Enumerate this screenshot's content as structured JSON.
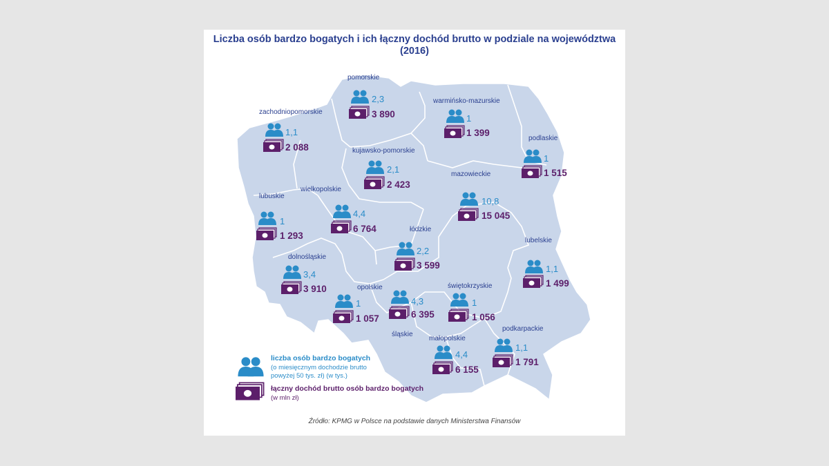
{
  "title": "Liczba osób bardzo bogatych i ich łączny dochód brutto w podziale na województwa",
  "subtitle": "(2016)",
  "colors": {
    "map_fill": "#c9d6ea",
    "borders": "#ffffff",
    "people": "#2a8cc8",
    "money": "#5c1f6a",
    "title": "#2a3f8f"
  },
  "icons": {
    "people": "people-icon",
    "money": "money-icon"
  },
  "regions": [
    {
      "name": "pomorskie",
      "count": "2,3",
      "income": "3 890"
    },
    {
      "name": "warmińsko-mazurskie",
      "count": "1",
      "income": "1 399"
    },
    {
      "name": "zachodniopomorskie",
      "count": "1,1",
      "income": "2 088"
    },
    {
      "name": "podlaskie",
      "count": "1",
      "income": "1 515"
    },
    {
      "name": "kujawsko-pomorskie",
      "count": "2,1",
      "income": "2 423"
    },
    {
      "name": "mazowieckie",
      "count": "10,8",
      "income": "15 045"
    },
    {
      "name": "lubuskie",
      "count": "1",
      "income": "1 293"
    },
    {
      "name": "wielkopolskie",
      "count": "4,4",
      "income": "6 764"
    },
    {
      "name": "łódzkie",
      "count": "2,2",
      "income": "3 599"
    },
    {
      "name": "lubelskie",
      "count": "1,1",
      "income": "1 499"
    },
    {
      "name": "dolnośląskie",
      "count": "3,4",
      "income": "3 910"
    },
    {
      "name": "opolskie",
      "count": "1",
      "income": "1 057"
    },
    {
      "name": "",
      "count": "4,3",
      "income": "6 395"
    },
    {
      "name": "świętokrzyskie",
      "count": "1",
      "income": "1 056"
    },
    {
      "name": "śląskie",
      "count": "",
      "income": ""
    },
    {
      "name": "małopolskie",
      "count": "4,4",
      "income": "6 155"
    },
    {
      "name": "podkarpackie",
      "count": "1,1",
      "income": "1 791"
    }
  ],
  "legend": {
    "people_title": "liczba osób bardzo bogatych",
    "people_sub1": "(o miesięcznym dochodzie brutto",
    "people_sub2": "powyżej 50 tys. zł) (w tys.)",
    "money_title": "łączny dochód brutto osób bardzo bogatych",
    "money_sub": "(w mln zł)"
  },
  "source": "Źródło: KPMG w Polsce na podstawie danych Ministerstwa Finansów"
}
